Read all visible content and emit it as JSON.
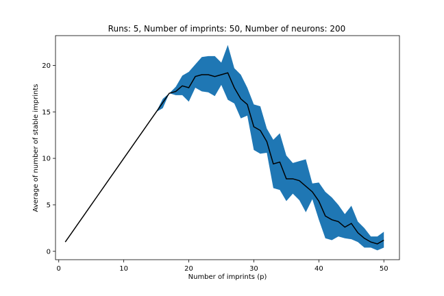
{
  "chart_data": {
    "type": "line",
    "title": "Runs: 5, Number of imprints: 50, Number of neurons: 200",
    "xlabel": "Number of imprints (p)",
    "ylabel": "Average of number of stable imprints",
    "xlim": [
      -0.5,
      52.4
    ],
    "ylim": [
      -0.9,
      23.2
    ],
    "xticks": [
      0,
      10,
      20,
      30,
      40,
      50
    ],
    "yticks": [
      0,
      5,
      10,
      15,
      20
    ],
    "grid": false,
    "legend": "none",
    "colors": {
      "band": "#1f77b4",
      "line": "#000000"
    },
    "series": [
      {
        "x": [
          1,
          2,
          3,
          4,
          5,
          6,
          7,
          8,
          9,
          10,
          11,
          12,
          13,
          14,
          15,
          16,
          17,
          18,
          19,
          20,
          21,
          22,
          23,
          24,
          25,
          26,
          27,
          28,
          29,
          30,
          31,
          32,
          33,
          34,
          35,
          36,
          37,
          38,
          39,
          40,
          41,
          42,
          43,
          44,
          45,
          46,
          47,
          48,
          49,
          50
        ],
        "mean": [
          1,
          2,
          3,
          4,
          5,
          6,
          7,
          8,
          9,
          10,
          11,
          12,
          13,
          14,
          15,
          16,
          17,
          17.2,
          17.8,
          17.6,
          18.8,
          19.0,
          19.0,
          18.8,
          19.0,
          19.2,
          17.6,
          16.4,
          15.8,
          13.4,
          13.0,
          11.8,
          9.4,
          9.6,
          7.8,
          7.8,
          7.6,
          7.0,
          6.4,
          5.4,
          3.8,
          3.4,
          3.2,
          2.6,
          3.0,
          2.0,
          1.4,
          1.0,
          0.8,
          1.2
        ],
        "upper": [
          1,
          2,
          3,
          4,
          5,
          6,
          7,
          8,
          9,
          10,
          11,
          12,
          13,
          14,
          15,
          16.4,
          17,
          17.7,
          18.9,
          19.3,
          20.1,
          20.9,
          21.0,
          21.0,
          20.3,
          22.2,
          19.7,
          19.0,
          17.6,
          15.8,
          15.6,
          13.2,
          12.0,
          12.7,
          10.3,
          9.5,
          9.7,
          9.9,
          7.3,
          7.4,
          6.4,
          5.8,
          5.0,
          4.0,
          4.9,
          3.2,
          2.5,
          1.6,
          1.6,
          2.1
        ],
        "lower": [
          1,
          2,
          3,
          4,
          5,
          6,
          7,
          8,
          9,
          10,
          11,
          12,
          13,
          14,
          15,
          15.4,
          17,
          16.8,
          16.8,
          16.1,
          17.6,
          17.2,
          17.1,
          16.7,
          17.9,
          16.3,
          15.9,
          14.3,
          14.6,
          10.9,
          10.5,
          10.6,
          6.8,
          6.6,
          5.4,
          6.2,
          5.5,
          4.2,
          5.6,
          3.4,
          1.4,
          1.2,
          1.6,
          1.4,
          1.3,
          1.0,
          0.4,
          0.4,
          0.1,
          0.4
        ]
      }
    ]
  }
}
